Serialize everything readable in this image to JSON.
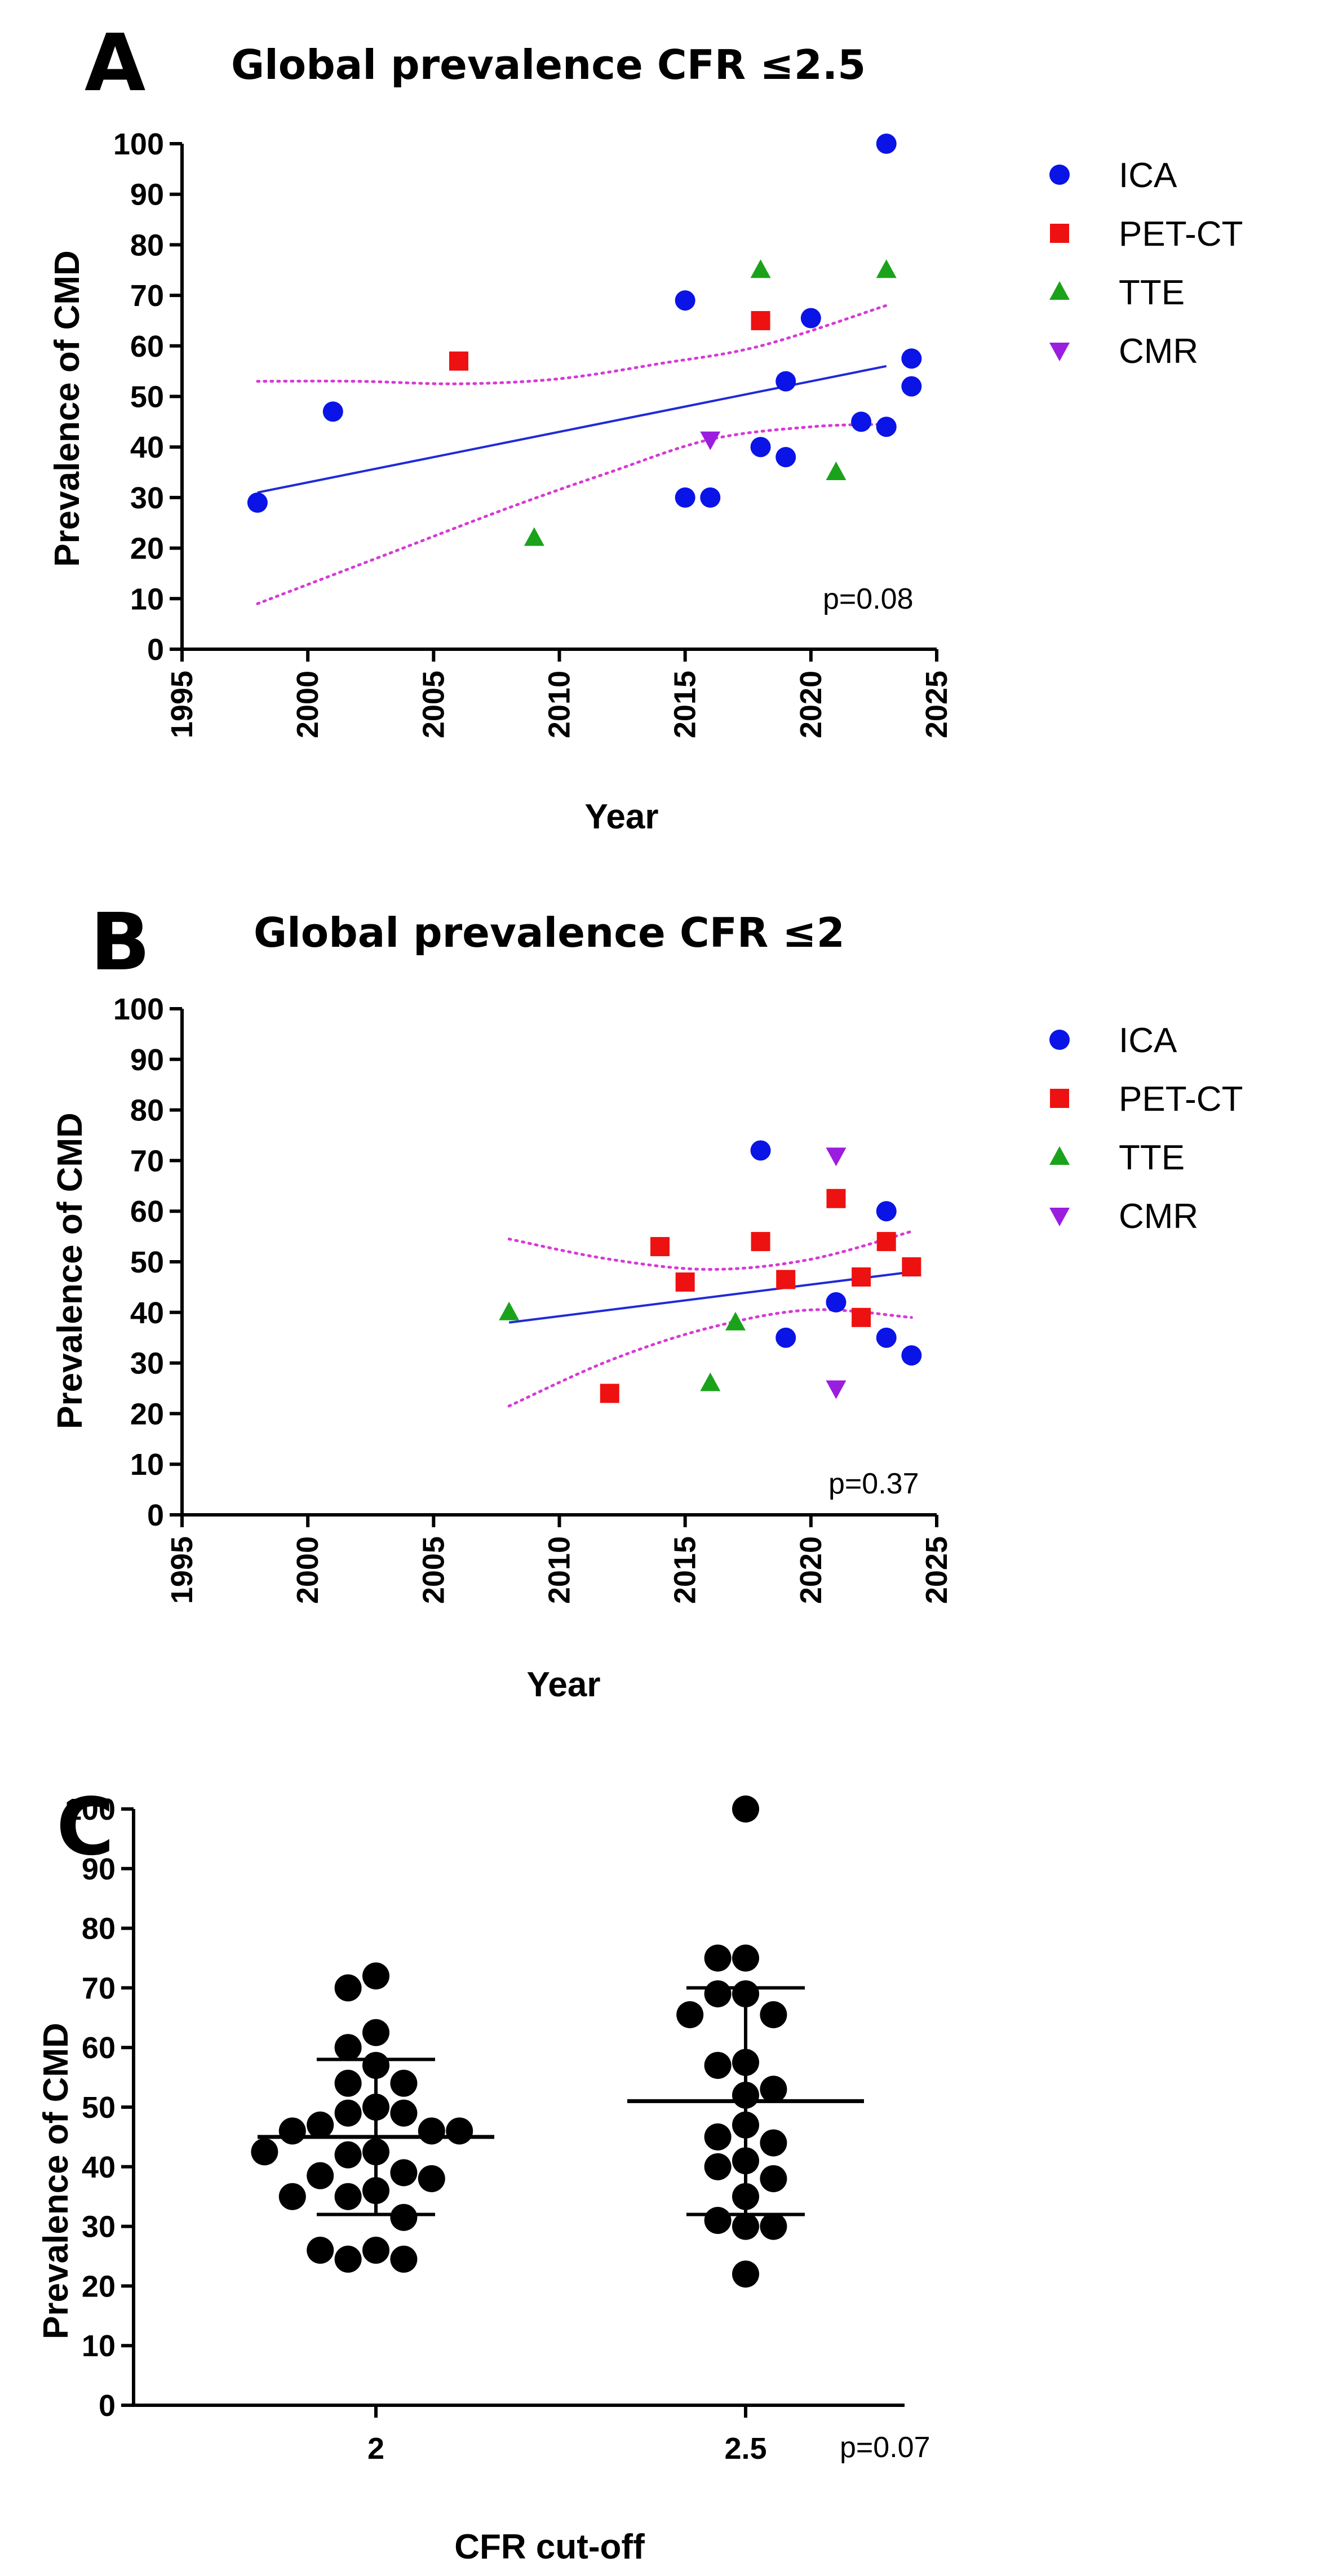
{
  "colors": {
    "ICA": "#0a14e6",
    "PET-CT": "#ee1111",
    "TTE": "#1aa31a",
    "CMR": "#9a1de0",
    "regression": "#1f2bd8",
    "ci": "#d63ad6",
    "dot": "#000000"
  },
  "markers": {
    "ICA": "circle",
    "PET-CT": "square",
    "TTE": "triangle-up",
    "CMR": "triangle-down"
  },
  "chart_data": [
    {
      "id": "A",
      "type": "scatter",
      "panel_letter": "A",
      "title": "Global prevalence CFR ≤2.5",
      "xlabel": "Year",
      "ylabel": "Prevalence of CMD",
      "xlim": [
        1995,
        2025
      ],
      "ylim": [
        0,
        100
      ],
      "xticks": [
        1995,
        2000,
        2005,
        2010,
        2015,
        2020,
        2025
      ],
      "yticks": [
        0,
        10,
        20,
        30,
        40,
        50,
        60,
        70,
        80,
        90,
        100
      ],
      "legend": [
        "ICA",
        "PET-CT",
        "TTE",
        "CMR"
      ],
      "legend_position": "right",
      "annotation": "p=0.08",
      "series": [
        {
          "name": "ICA",
          "points": [
            [
              1998,
              29
            ],
            [
              2001,
              47
            ],
            [
              2015,
              69
            ],
            [
              2015,
              30
            ],
            [
              2016,
              30
            ],
            [
              2018,
              40
            ],
            [
              2019,
              38
            ],
            [
              2019,
              53
            ],
            [
              2020,
              65.5
            ],
            [
              2022,
              45
            ],
            [
              2023,
              44
            ],
            [
              2023,
              100
            ],
            [
              2024,
              57.5
            ],
            [
              2024,
              52
            ]
          ]
        },
        {
          "name": "PET-CT",
          "points": [
            [
              2006,
              57
            ],
            [
              2018,
              65
            ]
          ]
        },
        {
          "name": "TTE",
          "points": [
            [
              2009,
              22
            ],
            [
              2018,
              75
            ],
            [
              2021,
              35
            ],
            [
              2023,
              75
            ]
          ]
        },
        {
          "name": "CMR",
          "points": [
            [
              2016,
              41.5
            ]
          ]
        }
      ],
      "regression": {
        "x": [
          1998,
          2023
        ],
        "y": [
          31,
          56
        ]
      },
      "ci_upper": [
        [
          1998,
          53
        ],
        [
          2002,
          53
        ],
        [
          2006,
          52.5
        ],
        [
          2010,
          53.5
        ],
        [
          2014,
          56.5
        ],
        [
          2018,
          60
        ],
        [
          2023,
          68
        ]
      ],
      "ci_lower": [
        [
          1998,
          9
        ],
        [
          2003,
          18.5
        ],
        [
          2008,
          28
        ],
        [
          2012,
          35
        ],
        [
          2016,
          41.5
        ],
        [
          2020,
          44
        ],
        [
          2023,
          44.5
        ]
      ]
    },
    {
      "id": "B",
      "type": "scatter",
      "panel_letter": "B",
      "title": "Global prevalence CFR ≤2",
      "xlabel": "Year",
      "ylabel": "Prevalence of CMD",
      "xlim": [
        1995,
        2025
      ],
      "ylim": [
        0,
        100
      ],
      "xticks": [
        1995,
        2000,
        2005,
        2010,
        2015,
        2020,
        2025
      ],
      "yticks": [
        0,
        10,
        20,
        30,
        40,
        50,
        60,
        70,
        80,
        90,
        100
      ],
      "legend": [
        "ICA",
        "PET-CT",
        "TTE",
        "CMR"
      ],
      "legend_position": "right",
      "annotation": "p=0.37",
      "series": [
        {
          "name": "ICA",
          "points": [
            [
              2018,
              72
            ],
            [
              2019,
              35
            ],
            [
              2021,
              42
            ],
            [
              2023,
              60
            ],
            [
              2023,
              35
            ],
            [
              2024,
              31.5
            ]
          ]
        },
        {
          "name": "PET-CT",
          "points": [
            [
              2012,
              24
            ],
            [
              2014,
              53
            ],
            [
              2015,
              46
            ],
            [
              2018,
              54
            ],
            [
              2019,
              46.5
            ],
            [
              2021,
              62.5
            ],
            [
              2022,
              47
            ],
            [
              2022,
              39
            ],
            [
              2023,
              54
            ],
            [
              2024,
              49
            ]
          ]
        },
        {
          "name": "TTE",
          "points": [
            [
              2008,
              40
            ],
            [
              2016,
              26
            ],
            [
              2017,
              38
            ]
          ]
        },
        {
          "name": "CMR",
          "points": [
            [
              2021,
              71
            ],
            [
              2021,
              25
            ]
          ]
        }
      ],
      "regression": {
        "x": [
          2008,
          2024
        ],
        "y": [
          38,
          48
        ]
      },
      "ci_upper": [
        [
          2008,
          54.5
        ],
        [
          2012,
          50.5
        ],
        [
          2016,
          48.5
        ],
        [
          2020,
          50.5
        ],
        [
          2024,
          56
        ]
      ],
      "ci_lower": [
        [
          2008,
          21.5
        ],
        [
          2012,
          30.5
        ],
        [
          2016,
          37
        ],
        [
          2020,
          40.5
        ],
        [
          2024,
          39
        ]
      ]
    },
    {
      "id": "C",
      "type": "scatter",
      "panel_letter": "C",
      "title": "",
      "xlabel": "CFR cut-off",
      "ylabel": "Prevalence of CMD",
      "categories": [
        "2",
        "2.5"
      ],
      "ylim": [
        0,
        100
      ],
      "yticks": [
        0,
        10,
        20,
        30,
        40,
        50,
        60,
        70,
        80,
        90,
        100
      ],
      "annotation": "p=0.07",
      "groups": [
        {
          "name": "2",
          "mean": 45,
          "sd_low": 32,
          "sd_high": 58,
          "values": [
            72,
            70,
            62.5,
            60,
            57,
            54,
            54,
            50,
            49,
            49,
            47,
            46,
            46,
            46,
            42.5,
            42.5,
            42,
            39,
            38.5,
            38,
            36,
            35,
            35,
            31.5,
            26,
            26,
            24.5,
            24.5
          ]
        },
        {
          "name": "2.5",
          "mean": 51,
          "sd_low": 32,
          "sd_high": 70,
          "values": [
            100,
            75,
            75,
            69,
            69,
            65.5,
            65.5,
            57.5,
            57,
            53,
            52,
            47,
            45,
            44,
            41,
            40,
            38,
            35,
            31,
            30,
            30,
            22
          ]
        }
      ]
    }
  ]
}
